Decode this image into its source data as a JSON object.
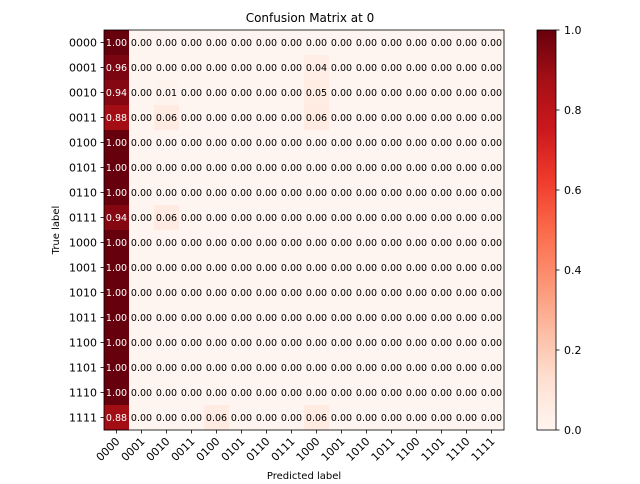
{
  "chart_data": {
    "type": "heatmap",
    "title": "Confusion Matrix at 0",
    "xlabel": "Predicted label",
    "ylabel": "True label",
    "labels": [
      "0000",
      "0001",
      "0010",
      "0011",
      "0100",
      "0101",
      "0110",
      "0111",
      "1000",
      "1001",
      "1010",
      "1011",
      "1100",
      "1101",
      "1110",
      "1111"
    ],
    "matrix": [
      [
        1.0,
        0.0,
        0.0,
        0.0,
        0.0,
        0.0,
        0.0,
        0.0,
        0.0,
        0.0,
        0.0,
        0.0,
        0.0,
        0.0,
        0.0,
        0.0
      ],
      [
        0.96,
        0.0,
        0.0,
        0.0,
        0.0,
        0.0,
        0.0,
        0.0,
        0.04,
        0.0,
        0.0,
        0.0,
        0.0,
        0.0,
        0.0,
        0.0
      ],
      [
        0.94,
        0.0,
        0.01,
        0.0,
        0.0,
        0.0,
        0.0,
        0.0,
        0.05,
        0.0,
        0.0,
        0.0,
        0.0,
        0.0,
        0.0,
        0.0
      ],
      [
        0.88,
        0.0,
        0.06,
        0.0,
        0.0,
        0.0,
        0.0,
        0.0,
        0.06,
        0.0,
        0.0,
        0.0,
        0.0,
        0.0,
        0.0,
        0.0
      ],
      [
        1.0,
        0.0,
        0.0,
        0.0,
        0.0,
        0.0,
        0.0,
        0.0,
        0.0,
        0.0,
        0.0,
        0.0,
        0.0,
        0.0,
        0.0,
        0.0
      ],
      [
        1.0,
        0.0,
        0.0,
        0.0,
        0.0,
        0.0,
        0.0,
        0.0,
        0.0,
        0.0,
        0.0,
        0.0,
        0.0,
        0.0,
        0.0,
        0.0
      ],
      [
        1.0,
        0.0,
        0.0,
        0.0,
        0.0,
        0.0,
        0.0,
        0.0,
        0.0,
        0.0,
        0.0,
        0.0,
        0.0,
        0.0,
        0.0,
        0.0
      ],
      [
        0.94,
        0.0,
        0.06,
        0.0,
        0.0,
        0.0,
        0.0,
        0.0,
        0.0,
        0.0,
        0.0,
        0.0,
        0.0,
        0.0,
        0.0,
        0.0
      ],
      [
        1.0,
        0.0,
        0.0,
        0.0,
        0.0,
        0.0,
        0.0,
        0.0,
        0.0,
        0.0,
        0.0,
        0.0,
        0.0,
        0.0,
        0.0,
        0.0
      ],
      [
        1.0,
        0.0,
        0.0,
        0.0,
        0.0,
        0.0,
        0.0,
        0.0,
        0.0,
        0.0,
        0.0,
        0.0,
        0.0,
        0.0,
        0.0,
        0.0
      ],
      [
        1.0,
        0.0,
        0.0,
        0.0,
        0.0,
        0.0,
        0.0,
        0.0,
        0.0,
        0.0,
        0.0,
        0.0,
        0.0,
        0.0,
        0.0,
        0.0
      ],
      [
        1.0,
        0.0,
        0.0,
        0.0,
        0.0,
        0.0,
        0.0,
        0.0,
        0.0,
        0.0,
        0.0,
        0.0,
        0.0,
        0.0,
        0.0,
        0.0
      ],
      [
        1.0,
        0.0,
        0.0,
        0.0,
        0.0,
        0.0,
        0.0,
        0.0,
        0.0,
        0.0,
        0.0,
        0.0,
        0.0,
        0.0,
        0.0,
        0.0
      ],
      [
        1.0,
        0.0,
        0.0,
        0.0,
        0.0,
        0.0,
        0.0,
        0.0,
        0.0,
        0.0,
        0.0,
        0.0,
        0.0,
        0.0,
        0.0,
        0.0
      ],
      [
        1.0,
        0.0,
        0.0,
        0.0,
        0.0,
        0.0,
        0.0,
        0.0,
        0.0,
        0.0,
        0.0,
        0.0,
        0.0,
        0.0,
        0.0,
        0.0
      ],
      [
        0.88,
        0.0,
        0.0,
        0.0,
        0.06,
        0.0,
        0.0,
        0.0,
        0.06,
        0.0,
        0.0,
        0.0,
        0.0,
        0.0,
        0.0,
        0.0
      ]
    ],
    "colorscale": "Reds",
    "colorbar": {
      "range": [
        0.0,
        1.0
      ],
      "ticks": [
        "0.0",
        "0.2",
        "0.4",
        "0.6",
        "0.8",
        "1.0"
      ]
    },
    "grid": false
  }
}
